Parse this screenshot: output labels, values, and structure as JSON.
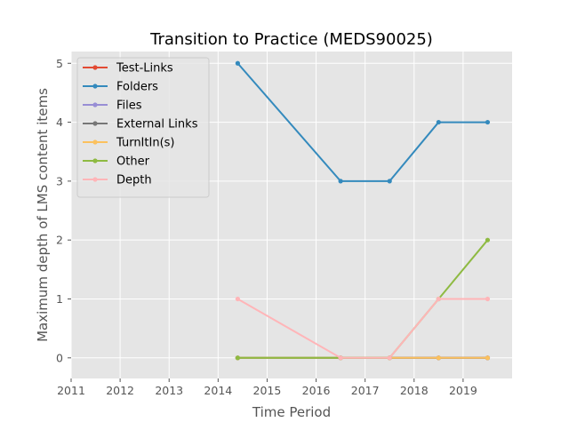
{
  "chart_data": {
    "type": "line",
    "title": "Transition to Practice (MEDS90025)",
    "xlabel": "Time Period",
    "ylabel": "Maximum depth of LMS content items",
    "xlim": [
      2011,
      2020
    ],
    "ylim": [
      -0.35,
      5.2
    ],
    "x_ticks": [
      2011,
      2012,
      2013,
      2014,
      2015,
      2016,
      2017,
      2018,
      2019
    ],
    "y_ticks": [
      0,
      1,
      2,
      3,
      4,
      5
    ],
    "grid": true,
    "legend_position": "top-left",
    "x": [
      2014.4,
      2016.5,
      2017.5,
      2018.5,
      2019.5
    ],
    "series": [
      {
        "name": "Test-Links",
        "color": "#E24A33",
        "values": [
          0,
          0,
          0,
          0,
          0
        ]
      },
      {
        "name": "Folders",
        "color": "#348ABD",
        "values": [
          5,
          3,
          3,
          4,
          4
        ]
      },
      {
        "name": "Files",
        "color": "#988ED5",
        "values": [
          0,
          0,
          0,
          0,
          0
        ]
      },
      {
        "name": "External Links",
        "color": "#777777",
        "values": [
          0,
          0,
          0,
          0,
          0
        ]
      },
      {
        "name": "TurnItIn(s)",
        "color": "#FBC15E",
        "values": [
          0,
          0,
          0,
          0,
          0
        ]
      },
      {
        "name": "Other",
        "color": "#8EBA42",
        "values": [
          0,
          0,
          0,
          1,
          2
        ]
      },
      {
        "name": "Depth",
        "color": "#FFB5B8",
        "values": [
          1,
          0,
          0,
          1,
          1
        ]
      }
    ]
  }
}
